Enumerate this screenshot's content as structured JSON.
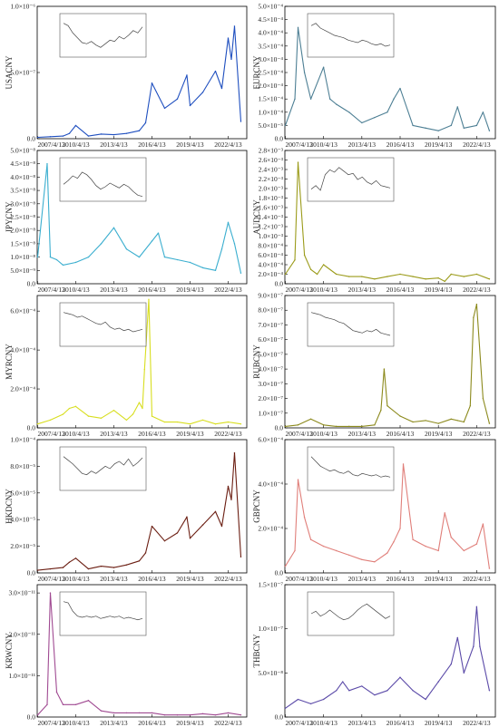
{
  "chart_data": [
    {
      "type": "line",
      "pair": "USACNY",
      "color": "#1f4fbf",
      "x": [
        "2007/4/13",
        "2008/4/13",
        "2009/4/13",
        "2009/10/13",
        "2010/4/13",
        "2011/4/13",
        "2012/4/13",
        "2013/4/13",
        "2014/4/13",
        "2015/4/13",
        "2015/10/13",
        "2016/4/13",
        "2017/4/13",
        "2018/4/13",
        "2019/1/13",
        "2019/4/13",
        "2020/4/13",
        "2021/4/13",
        "2021/10/13",
        "2022/4/13",
        "2022/7/13",
        "2022/10/13",
        "2023/4/13"
      ],
      "values": [
        0.1,
        0.15,
        0.2,
        0.4,
        1.0,
        0.2,
        0.35,
        0.3,
        0.4,
        0.6,
        1.2,
        4.2,
        2.3,
        3.0,
        4.8,
        2.5,
        3.5,
        5.1,
        3.8,
        7.6,
        6.0,
        8.5,
        1.3
      ],
      "xlabels": [
        "2007/4/13",
        "2010/4/13",
        "2013/4/13",
        "2016/4/13",
        "2019/4/13",
        "2022/4/13"
      ],
      "yticks": [
        0.0,
        5.0,
        10.0
      ],
      "ytick_labels": [
        "0.0",
        "5.0×10⁻⁷",
        "1.0×10⁻⁶"
      ],
      "ylim": [
        0,
        10.0
      ],
      "inset": [
        3,
        2.8,
        2.2,
        1.8,
        1.4,
        1.3,
        1.5,
        1.2,
        1.0,
        1.3,
        1.6,
        1.5,
        1.9,
        1.7,
        2.0,
        2.4,
        2.2,
        2.7
      ]
    },
    {
      "type": "line",
      "pair": "EURCNY",
      "color": "#4d7f94",
      "x": [
        "2007/4/13",
        "2008/1/13",
        "2008/4/13",
        "2008/10/13",
        "2009/4/13",
        "2010/4/13",
        "2010/10/13",
        "2011/4/13",
        "2012/4/13",
        "2013/4/13",
        "2014/4/13",
        "2015/4/13",
        "2015/10/13",
        "2016/4/13",
        "2017/4/13",
        "2018/4/13",
        "2019/4/13",
        "2020/4/13",
        "2020/10/13",
        "2021/4/13",
        "2022/4/13",
        "2022/10/13",
        "2023/4/13"
      ],
      "values": [
        0.5,
        1.5,
        4.2,
        2.5,
        1.5,
        2.7,
        1.5,
        1.3,
        1.0,
        0.6,
        0.8,
        1.0,
        1.5,
        1.9,
        0.5,
        0.4,
        0.3,
        0.5,
        1.2,
        0.4,
        0.5,
        1.0,
        0.3
      ],
      "xlabels": [
        "2007/4/13",
        "2010/4/13",
        "2013/4/13",
        "2016/4/13",
        "2019/4/13",
        "2022/4/13"
      ],
      "yticks": [
        0.0,
        0.5,
        1.0,
        1.5,
        2.0,
        2.5,
        3.0,
        3.5,
        4.0,
        4.5,
        5.0
      ],
      "ytick_labels": [
        "0.0",
        "5.0×10⁻⁵",
        "1.0×10⁻⁴",
        "1.5×10⁻⁴",
        "2.0×10⁻⁴",
        "2.5×10⁻⁴",
        "3.0×10⁻⁴",
        "3.5×10⁻⁴",
        "4.0×10⁻⁴",
        "4.5×10⁻⁴",
        "5.0×10⁻⁴"
      ],
      "ylim": [
        0,
        5.0
      ],
      "inset": [
        2.8,
        3.0,
        2.6,
        2.4,
        2.2,
        2.0,
        1.9,
        1.8,
        1.6,
        1.5,
        1.4,
        1.6,
        1.5,
        1.3,
        1.2,
        1.3,
        1.1,
        1.2
      ]
    },
    {
      "type": "line",
      "pair": "JPYCNY",
      "color": "#3aaecf",
      "x": [
        "2007/4/13",
        "2008/1/13",
        "2008/4/13",
        "2008/10/13",
        "2009/4/13",
        "2010/4/13",
        "2011/4/13",
        "2012/4/13",
        "2013/4/13",
        "2014/4/13",
        "2015/4/13",
        "2016/4/13",
        "2016/10/13",
        "2017/4/13",
        "2018/4/13",
        "2019/4/13",
        "2020/4/13",
        "2021/4/13",
        "2021/10/13",
        "2022/4/13",
        "2022/10/13",
        "2023/4/13"
      ],
      "values": [
        1.0,
        4.5,
        1.0,
        0.9,
        0.7,
        0.8,
        1.0,
        1.5,
        2.1,
        1.3,
        1.0,
        1.6,
        1.9,
        1.0,
        0.9,
        0.8,
        0.6,
        0.5,
        1.3,
        2.3,
        1.5,
        0.4
      ],
      "xlabels": [
        "2007/4/13",
        "2010/4/13",
        "2013/4/13",
        "2016/4/13",
        "2019/4/13",
        "2022/4/13"
      ],
      "yticks": [
        0.0,
        0.5,
        1.0,
        1.5,
        2.0,
        2.5,
        3.0,
        3.5,
        4.0,
        4.5,
        5.0
      ],
      "ytick_labels": [
        "0.0",
        "5.0×10⁻⁹",
        "1.0×10⁻⁸",
        "1.5×10⁻⁸",
        "2.0×10⁻⁸",
        "2.5×10⁻⁸",
        "3.0×10⁻⁸",
        "3.5×10⁻⁸",
        "4.0×10⁻⁸",
        "4.5×10⁻⁸",
        "5.0×10⁻⁸"
      ],
      "ylim": [
        0,
        5.0
      ],
      "inset": [
        1.6,
        1.9,
        2.3,
        2.1,
        2.6,
        2.4,
        2.0,
        1.5,
        1.2,
        1.4,
        1.7,
        1.5,
        1.3,
        1.6,
        1.4,
        1.0,
        0.7,
        0.6
      ]
    },
    {
      "type": "line",
      "pair": "AUDCNY",
      "color": "#9b9b1a",
      "x": [
        "2007/4/13",
        "2008/1/13",
        "2008/4/13",
        "2008/10/13",
        "2009/4/13",
        "2009/10/13",
        "2010/4/13",
        "2011/4/13",
        "2012/4/13",
        "2013/4/13",
        "2014/4/13",
        "2015/4/13",
        "2016/4/13",
        "2017/4/13",
        "2018/4/13",
        "2019/4/13",
        "2019/10/13",
        "2020/4/13",
        "2021/4/13",
        "2022/4/13",
        "2023/4/13"
      ],
      "values": [
        0.2,
        0.5,
        2.55,
        0.6,
        0.3,
        0.2,
        0.4,
        0.2,
        0.15,
        0.15,
        0.1,
        0.15,
        0.2,
        0.15,
        0.1,
        0.12,
        0.05,
        0.2,
        0.15,
        0.2,
        0.1
      ],
      "xlabels": [
        "2007/4/13",
        "2010/4/13",
        "2013/4/13",
        "2016/4/13",
        "2019/4/13",
        "2022/4/13"
      ],
      "yticks": [
        0.0,
        0.2,
        0.4,
        0.6,
        0.8,
        1.0,
        1.2,
        1.4,
        1.6,
        1.8,
        2.0,
        2.2,
        2.4,
        2.6,
        2.8
      ],
      "ytick_labels": [
        "0.0",
        "2.0×10⁻⁴",
        "4.0×10⁻⁴",
        "6.0×10⁻⁴",
        "8.0×10⁻⁴",
        "1.0×10⁻³",
        "1.2×10⁻³",
        "1.4×10⁻³",
        "1.6×10⁻³",
        "1.8×10⁻³",
        "2.0×10⁻³",
        "2.2×10⁻³",
        "2.4×10⁻³",
        "2.6×10⁻³",
        "2.8×10⁻³"
      ],
      "ylim": [
        0,
        2.8
      ],
      "inset": [
        1.2,
        1.5,
        1.1,
        2.4,
        2.8,
        2.6,
        3.0,
        2.7,
        2.4,
        2.5,
        2.0,
        2.2,
        1.8,
        1.6,
        1.9,
        1.5,
        1.4,
        1.3
      ]
    },
    {
      "type": "line",
      "pair": "MYRCNY",
      "color": "#d8de1f",
      "x": [
        "2007/4/13",
        "2008/4/13",
        "2009/4/13",
        "2009/10/13",
        "2010/4/13",
        "2011/4/13",
        "2012/4/13",
        "2013/4/13",
        "2014/4/13",
        "2014/10/13",
        "2015/4/13",
        "2015/7/13",
        "2015/9/13",
        "2016/1/13",
        "2016/4/13",
        "2017/4/13",
        "2018/4/13",
        "2019/4/13",
        "2020/4/13",
        "2021/4/13",
        "2022/4/13",
        "2023/4/13"
      ],
      "values": [
        0.2,
        0.4,
        0.7,
        1.0,
        1.1,
        0.6,
        0.5,
        0.9,
        0.4,
        0.7,
        1.3,
        1.0,
        3.0,
        6.6,
        0.6,
        0.3,
        0.3,
        0.2,
        0.4,
        0.2,
        0.3,
        0.2
      ],
      "xlabels": [
        "2007/4/13",
        "2010/4/13",
        "2013/4/13",
        "2016/4/13",
        "2019/4/13",
        "2022/4/13"
      ],
      "yticks": [
        0.0,
        2.0,
        4.0,
        6.0
      ],
      "ytick_labels": [
        "0.0",
        "2.0×10⁻⁴",
        "4.0×10⁻⁴",
        "6.0×10⁻⁴"
      ],
      "ylim": [
        0,
        6.8
      ],
      "inset": [
        3.0,
        2.9,
        2.8,
        2.6,
        2.7,
        2.5,
        2.3,
        2.1,
        2.0,
        2.2,
        1.8,
        1.6,
        1.7,
        1.5,
        1.6,
        1.4,
        1.5,
        1.6
      ]
    },
    {
      "type": "line",
      "pair": "RUBCNY",
      "color": "#8c8a1d",
      "x": [
        "2007/4/13",
        "2008/4/13",
        "2009/4/13",
        "2010/4/13",
        "2011/4/13",
        "2012/4/13",
        "2013/4/13",
        "2014/4/13",
        "2014/10/13",
        "2015/1/13",
        "2015/4/13",
        "2016/4/13",
        "2017/4/13",
        "2018/4/13",
        "2019/4/13",
        "2020/4/13",
        "2020/10/13",
        "2021/4/13",
        "2021/10/13",
        "2022/1/13",
        "2022/4/13",
        "2022/10/13",
        "2023/4/13"
      ],
      "values": [
        0.1,
        0.2,
        0.6,
        0.2,
        0.1,
        0.1,
        0.1,
        0.2,
        1.2,
        4.0,
        1.5,
        0.8,
        0.4,
        0.5,
        0.3,
        0.6,
        0.5,
        0.4,
        1.5,
        7.5,
        8.4,
        2.0,
        0.3
      ],
      "xlabels": [
        "2007/4/13",
        "2010/4/13",
        "2013/4/13",
        "2016/4/13",
        "2019/4/13",
        "2022/4/13"
      ],
      "yticks": [
        0.0,
        1.0,
        2.0,
        3.0,
        4.0,
        5.0,
        6.0,
        7.0,
        8.0,
        9.0
      ],
      "ytick_labels": [
        "0.0",
        "1.0×10⁻⁷",
        "2.0×10⁻⁷",
        "3.0×10⁻⁷",
        "4.0×10⁻⁷",
        "5.0×10⁻⁷",
        "6.0×10⁻⁷",
        "7.0×10⁻⁷",
        "8.0×10⁻⁷",
        "9.0×10⁻⁷"
      ],
      "ylim": [
        0,
        9.0
      ],
      "inset": [
        3.0,
        2.9,
        2.8,
        2.6,
        2.5,
        2.4,
        2.2,
        2.1,
        1.8,
        1.5,
        1.4,
        1.3,
        1.5,
        1.4,
        1.6,
        1.3,
        1.2,
        1.1
      ]
    },
    {
      "type": "line",
      "pair": "HKDCNY",
      "color": "#6b1e12",
      "x": [
        "2007/4/13",
        "2008/4/13",
        "2009/4/13",
        "2009/10/13",
        "2010/4/13",
        "2011/4/13",
        "2012/4/13",
        "2013/4/13",
        "2014/4/13",
        "2015/4/13",
        "2015/10/13",
        "2016/4/13",
        "2017/4/13",
        "2018/4/13",
        "2019/1/13",
        "2019/4/13",
        "2020/4/13",
        "2021/4/13",
        "2021/10/13",
        "2022/4/13",
        "2022/7/13",
        "2022/10/13",
        "2023/4/13"
      ],
      "values": [
        0.2,
        0.3,
        0.4,
        0.8,
        1.1,
        0.3,
        0.5,
        0.4,
        0.6,
        0.9,
        1.5,
        3.5,
        2.4,
        3.0,
        4.2,
        2.6,
        3.6,
        4.6,
        3.5,
        6.5,
        5.5,
        9.0,
        1.2
      ],
      "xlabels": [
        "2007/4/13",
        "2010/4/13",
        "2013/4/13",
        "2016/4/13",
        "2019/4/13",
        "2022/4/13"
      ],
      "yticks": [
        0.0,
        2.0,
        4.0,
        6.0,
        8.0,
        10.0
      ],
      "ytick_labels": [
        "0.0",
        "2.0×10⁻⁵",
        "4.0×10⁻⁵",
        "6.0×10⁻⁵",
        "8.0×10⁻⁵",
        "1.0×10⁻⁴"
      ],
      "ylim": [
        0,
        10.0
      ],
      "inset": [
        3.0,
        2.7,
        2.4,
        2.0,
        1.6,
        1.5,
        1.8,
        1.6,
        1.9,
        2.2,
        2.0,
        2.4,
        2.6,
        2.3,
        2.8,
        2.2,
        2.5,
        2.9
      ]
    },
    {
      "type": "line",
      "pair": "GBPCNY",
      "color": "#e07f7a",
      "x": [
        "2007/4/13",
        "2008/1/13",
        "2008/4/13",
        "2008/10/13",
        "2009/4/13",
        "2010/4/13",
        "2011/4/13",
        "2012/4/13",
        "2013/4/13",
        "2014/4/13",
        "2015/4/13",
        "2015/10/13",
        "2016/4/13",
        "2016/7/13",
        "2017/4/13",
        "2018/4/13",
        "2019/4/13",
        "2019/10/13",
        "2020/4/13",
        "2021/4/13",
        "2022/4/13",
        "2022/10/13",
        "2023/4/13"
      ],
      "values": [
        0.3,
        1.0,
        4.2,
        2.5,
        1.5,
        1.2,
        1.0,
        0.8,
        0.6,
        0.5,
        0.9,
        1.4,
        2.0,
        4.9,
        1.5,
        1.2,
        1.0,
        2.7,
        1.6,
        1.0,
        1.3,
        2.2,
        0.2
      ],
      "xlabels": [
        "2007/4/13",
        "2010/4/13",
        "2013/4/13",
        "2016/4/13",
        "2019/4/13",
        "2022/4/13"
      ],
      "yticks": [
        0.0,
        2.0,
        4.0,
        6.0
      ],
      "ytick_labels": [
        "0.0",
        "2.0×10⁻⁴",
        "4.0×10⁻⁴",
        "6.0×10⁻⁴"
      ],
      "ylim": [
        0,
        6.0
      ],
      "inset": [
        3.0,
        2.6,
        2.2,
        2.0,
        1.8,
        1.9,
        1.7,
        1.6,
        1.8,
        1.5,
        1.4,
        1.6,
        1.5,
        1.4,
        1.5,
        1.3,
        1.4,
        1.3
      ]
    },
    {
      "type": "line",
      "pair": "KRWCNY",
      "color": "#a04a92",
      "x": [
        "2007/4/13",
        "2008/1/13",
        "2008/4/13",
        "2008/10/13",
        "2009/4/13",
        "2010/4/13",
        "2011/4/13",
        "2012/4/13",
        "2013/4/13",
        "2014/4/13",
        "2015/4/13",
        "2016/4/13",
        "2017/4/13",
        "2018/4/13",
        "2019/4/13",
        "2020/4/13",
        "2021/4/13",
        "2022/4/13",
        "2023/4/13"
      ],
      "values": [
        0.05,
        0.3,
        3.0,
        0.6,
        0.3,
        0.3,
        0.4,
        0.15,
        0.1,
        0.1,
        0.1,
        0.1,
        0.05,
        0.05,
        0.05,
        0.08,
        0.05,
        0.1,
        0.05
      ],
      "xlabels": [
        "2007/4/13",
        "2010/4/13",
        "2013/4/13",
        "2016/4/13",
        "2019/4/13",
        "2022/4/13"
      ],
      "yticks": [
        0.0,
        1.0,
        2.0,
        3.0
      ],
      "ytick_labels": [
        "0.0",
        "1.0×10⁻¹¹",
        "2.0×10⁻¹¹",
        "3.0×10⁻¹¹"
      ],
      "ylim": [
        0,
        3.2
      ],
      "inset": [
        3.0,
        2.9,
        2.2,
        1.8,
        1.7,
        1.8,
        1.7,
        1.8,
        1.6,
        1.7,
        1.8,
        1.7,
        1.8,
        1.6,
        1.7,
        1.6,
        1.5,
        1.6
      ]
    },
    {
      "type": "line",
      "pair": "THBCNY",
      "color": "#5b4aa8",
      "x": [
        "2007/4/13",
        "2008/4/13",
        "2009/4/13",
        "2010/4/13",
        "2011/4/13",
        "2011/10/13",
        "2012/4/13",
        "2013/4/13",
        "2014/4/13",
        "2015/4/13",
        "2016/4/13",
        "2017/4/13",
        "2018/4/13",
        "2019/4/13",
        "2020/4/13",
        "2020/10/13",
        "2021/4/13",
        "2022/1/13",
        "2022/4/13",
        "2022/7/13",
        "2023/4/13"
      ],
      "values": [
        0.1,
        0.2,
        0.15,
        0.2,
        0.3,
        0.4,
        0.3,
        0.35,
        0.25,
        0.3,
        0.45,
        0.3,
        0.2,
        0.4,
        0.6,
        0.9,
        0.5,
        0.8,
        1.25,
        0.8,
        0.3
      ],
      "xlabels": [
        "2007/4/13",
        "2010/4/13",
        "2013/4/13",
        "2016/4/13",
        "2019/4/13",
        "2022/4/13"
      ],
      "yticks": [
        0.0,
        0.5,
        1.0,
        1.5
      ],
      "ytick_labels": [
        "0.0",
        "5.0×10⁻⁸",
        "1.0×10⁻⁷",
        "1.5×10⁻⁷"
      ],
      "ylim": [
        0,
        1.5
      ],
      "inset": [
        2.0,
        2.2,
        1.8,
        2.0,
        2.3,
        2.0,
        1.7,
        1.5,
        1.6,
        1.9,
        2.3,
        2.6,
        2.8,
        2.5,
        2.2,
        1.9,
        1.6,
        1.8
      ]
    }
  ]
}
